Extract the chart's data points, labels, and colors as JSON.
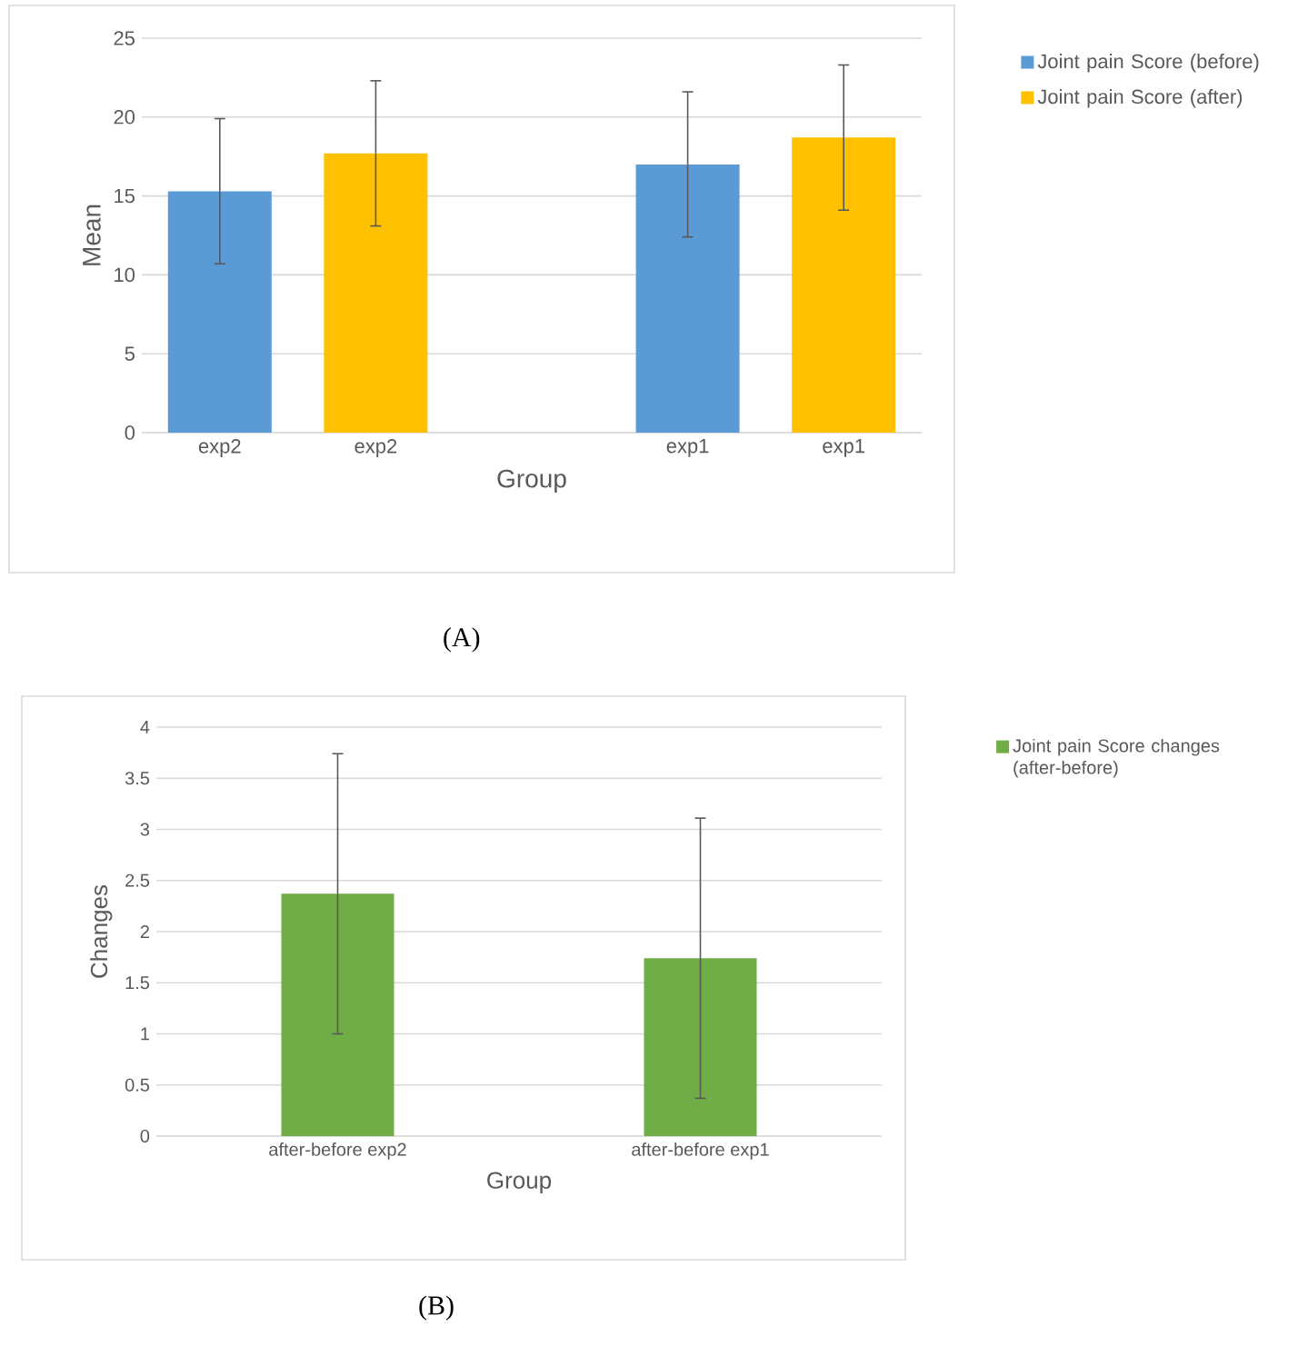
{
  "chart_data": [
    {
      "type": "bar",
      "categories": [
        "exp2",
        "exp2",
        null,
        "exp1",
        "exp1"
      ],
      "xlabel": "Group",
      "ylabel": "Mean",
      "series": [
        {
          "name": "Joint pain Score (before)",
          "color": "#5b9bd5",
          "values": [
            15.3,
            null,
            null,
            17.0,
            null
          ],
          "errors": [
            4.6,
            null,
            null,
            4.6,
            null
          ]
        },
        {
          "name": "Joint pain Score (after)",
          "color": "#ffc000",
          "values": [
            null,
            17.7,
            null,
            null,
            18.7
          ],
          "errors": [
            null,
            4.6,
            null,
            null,
            4.6
          ]
        }
      ],
      "ylim": [
        0,
        25
      ],
      "yticks": [
        0,
        5,
        10,
        15,
        20,
        25
      ],
      "grid": "y",
      "legend": "right",
      "annotations": [
        "(A)"
      ]
    },
    {
      "type": "bar",
      "categories": [
        "after-before exp2",
        "after-before exp1"
      ],
      "xlabel": "Group",
      "ylabel": "Changes",
      "series": [
        {
          "name": "Joint pain Score changes (after-before)",
          "color": "#70ad47",
          "values": [
            2.37,
            1.74
          ],
          "errors": [
            1.37,
            1.37
          ]
        }
      ],
      "ylim": [
        0,
        4
      ],
      "yticks": [
        0,
        0.5,
        1,
        1.5,
        2,
        2.5,
        3,
        3.5,
        4
      ],
      "grid": "y",
      "legend": "right",
      "annotations": [
        "(B)"
      ]
    }
  ]
}
